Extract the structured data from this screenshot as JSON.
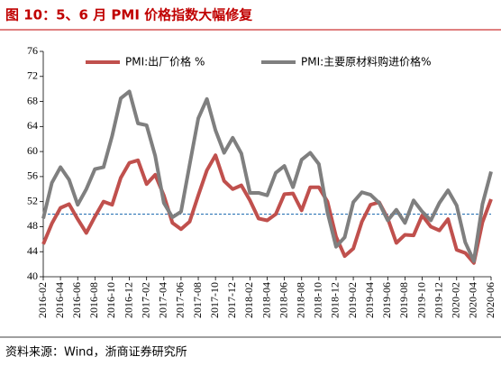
{
  "chart_data": {
    "type": "line",
    "title": "图 10：5、6 月 PMI 价格指数大幅修复",
    "source": "资料来源：Wind，浙商证券研究所",
    "categories": [
      "2016-02",
      null,
      "2016-04",
      null,
      "2016-06",
      null,
      "2016-08",
      null,
      "2016-10",
      null,
      "2016-12",
      null,
      "2017-02",
      null,
      "2017-04",
      null,
      "2017-06",
      null,
      "2017-08",
      null,
      "2017-10",
      null,
      "2017-12",
      null,
      "2018-02",
      null,
      "2018-04",
      null,
      "2018-06",
      null,
      "2018-08",
      null,
      "2018-10",
      null,
      "2018-12",
      null,
      "2019-02",
      null,
      "2019-04",
      null,
      "2019-06",
      null,
      "2019-08",
      null,
      "2019-10",
      null,
      "2019-12",
      null,
      "2020-02",
      null,
      "2020-04",
      null,
      "2020-06"
    ],
    "series": [
      {
        "name": "PMI:出厂价格 %",
        "color": "#c0504d",
        "values": [
          45.2,
          48.5,
          51.0,
          51.6,
          49.2,
          47.0,
          49.6,
          52.0,
          51.5,
          55.8,
          58.2,
          58.6,
          54.8,
          56.3,
          53.0,
          48.6,
          47.6,
          48.8,
          53.0,
          57.0,
          59.4,
          55.3,
          54.0,
          54.6,
          52.2,
          49.3,
          49.0,
          50.0,
          53.2,
          53.3,
          50.6,
          54.3,
          54.3,
          52.0,
          46.4,
          43.3,
          44.5,
          48.8,
          51.5,
          51.9,
          49.3,
          45.4,
          46.7,
          46.6,
          49.8,
          48.0,
          47.4,
          49.2,
          44.3,
          43.8,
          42.2,
          48.7,
          52.4
        ]
      },
      {
        "name": "PMI:主要原材料购进价格%",
        "color": "#7f7f7f",
        "values": [
          49.3,
          55.0,
          57.5,
          55.5,
          51.5,
          54.0,
          57.2,
          57.5,
          62.5,
          68.5,
          69.6,
          64.5,
          64.2,
          59.3,
          51.8,
          49.5,
          50.4,
          57.9,
          65.3,
          68.4,
          63.4,
          59.8,
          62.2,
          59.7,
          53.4,
          53.4,
          53.0,
          56.6,
          57.7,
          54.3,
          58.7,
          59.8,
          58.0,
          50.3,
          44.8,
          46.3,
          51.9,
          53.5,
          53.1,
          51.8,
          49.0,
          50.7,
          48.6,
          52.2,
          50.4,
          49.0,
          51.8,
          53.8,
          51.4,
          45.5,
          42.5,
          51.6,
          56.8
        ]
      }
    ],
    "reference_line": {
      "value": 50,
      "color": "#2e75b6"
    },
    "ylim": [
      40,
      76
    ],
    "yticks": [
      40,
      44,
      48,
      52,
      56,
      60,
      64,
      68,
      72,
      76
    ]
  }
}
